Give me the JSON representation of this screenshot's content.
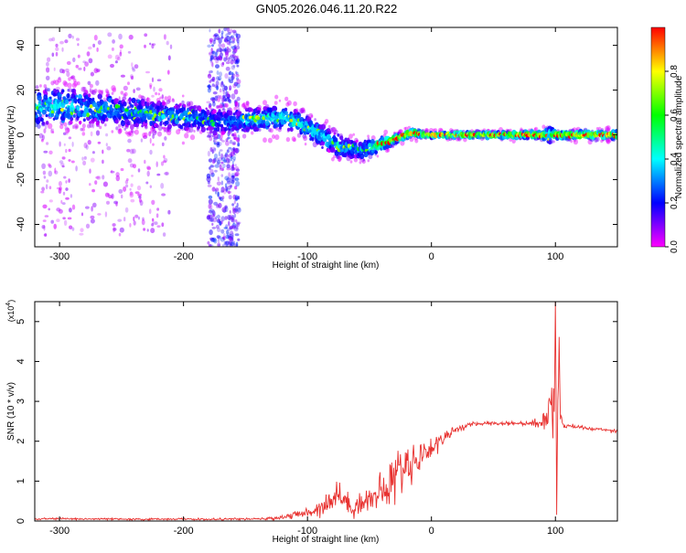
{
  "figure_title": "GN05.2026.046.11.20.R22",
  "chart_data": [
    {
      "type": "heatmap",
      "title": "",
      "xlabel": "Height of straight line (km)",
      "ylabel": "Frequency (Hz)",
      "xlim": [
        -320,
        150
      ],
      "ylim": [
        -50,
        48
      ],
      "xticks": [
        -300,
        -200,
        -100,
        0,
        100
      ],
      "yticks": [
        -40,
        -20,
        0,
        20,
        40
      ],
      "grid": false,
      "colorbar": {
        "label": "Normalized spectral amplitude",
        "range": [
          0,
          1
        ],
        "ticks": [
          0.0,
          0.2,
          0.4,
          0.6,
          0.8
        ],
        "colormap": [
          "#ff00ff",
          "#0000ff",
          "#00ffff",
          "#00ff00",
          "#ffff00",
          "#ff0000"
        ],
        "colormap_stops": [
          0,
          0.2,
          0.4,
          0.6,
          0.8,
          1.0
        ]
      },
      "ridge": {
        "x": [
          -320,
          -300,
          -280,
          -260,
          -240,
          -220,
          -200,
          -185,
          -172,
          -160,
          -140,
          -120,
          -105,
          -90,
          -75,
          -65,
          -55,
          -45,
          -35,
          -25,
          -15,
          -5,
          20,
          50,
          90,
          95,
          100,
          150
        ],
        "y": [
          12,
          13,
          12,
          11,
          10,
          9,
          8,
          7,
          6,
          6,
          7,
          8,
          5,
          0,
          -5,
          -6,
          -7,
          -5,
          -3,
          -1,
          1,
          0,
          0,
          0,
          0,
          0,
          0,
          0
        ],
        "width": [
          9,
          9,
          9,
          8,
          8,
          7,
          7,
          6,
          7,
          6,
          6,
          6,
          6,
          6,
          6,
          5,
          5,
          4,
          3,
          2,
          2,
          1.5,
          1.5,
          1.5,
          2,
          5,
          2,
          2
        ],
        "amplitude": [
          0.38,
          0.4,
          0.36,
          0.32,
          0.3,
          0.32,
          0.35,
          0.3,
          0.25,
          0.3,
          0.35,
          0.42,
          0.4,
          0.4,
          0.35,
          0.35,
          0.3,
          0.55,
          0.7,
          0.8,
          0.85,
          0.8,
          0.82,
          0.8,
          0.8,
          0.4,
          0.8,
          0.78
        ]
      },
      "noise_bands": [
        {
          "x_range": [
            -180,
            -155
          ],
          "y_range": [
            -50,
            48
          ],
          "amplitude": 0.12
        },
        {
          "x_range": [
            -315,
            -210
          ],
          "y_range": [
            -45,
            45
          ],
          "amplitude": 0.05
        }
      ]
    },
    {
      "type": "line",
      "title": "",
      "xlabel": "Height of straight line (km)",
      "ylabel": "SNR (10 * v/v)",
      "y_multiplier": "(x10",
      "y_multiplier_exp": "4",
      "xlim": [
        -320,
        150
      ],
      "ylim": [
        0,
        5.5
      ],
      "xticks": [
        -300,
        -200,
        -100,
        0,
        100
      ],
      "yticks": [
        0,
        1,
        2,
        3,
        4,
        5
      ],
      "grid": false,
      "color": "#e8312f",
      "series": [
        {
          "x": [
            -320,
            -300,
            -280,
            -260,
            -240,
            -220,
            -200,
            -180,
            -160,
            -140,
            -130,
            -120,
            -110,
            -100,
            -90,
            -80,
            -75,
            -70,
            -65,
            -60,
            -55,
            -50,
            -45,
            -40,
            -35,
            -30,
            -25,
            -20,
            -15,
            -10,
            -5,
            0,
            5,
            10,
            15,
            20,
            25,
            30,
            40,
            50,
            60,
            70,
            80,
            88,
            92,
            95,
            97,
            98,
            99,
            100,
            101,
            102,
            103,
            104,
            105,
            107,
            110,
            120,
            130,
            140,
            150
          ],
          "y": [
            0.05,
            0.06,
            0.05,
            0.05,
            0.04,
            0.05,
            0.05,
            0.04,
            0.05,
            0.05,
            0.06,
            0.1,
            0.15,
            0.2,
            0.35,
            0.55,
            0.7,
            0.5,
            0.35,
            0.4,
            0.5,
            0.55,
            0.6,
            0.7,
            0.85,
            1.1,
            1.3,
            1.4,
            1.5,
            1.6,
            1.7,
            1.85,
            1.95,
            2.1,
            2.2,
            2.3,
            2.35,
            2.4,
            2.45,
            2.45,
            2.45,
            2.45,
            2.45,
            2.45,
            2.6,
            2.9,
            3.4,
            2.3,
            3.0,
            5.4,
            0.4,
            3.2,
            4.3,
            2.7,
            2.5,
            2.35,
            2.4,
            2.35,
            2.3,
            2.3,
            2.25
          ],
          "noise": [
            0.02,
            0.02,
            0.02,
            0.02,
            0.02,
            0.02,
            0.02,
            0.02,
            0.02,
            0.02,
            0.03,
            0.05,
            0.08,
            0.12,
            0.2,
            0.25,
            0.3,
            0.25,
            0.2,
            0.22,
            0.25,
            0.3,
            0.35,
            0.4,
            0.5,
            0.55,
            0.5,
            0.45,
            0.4,
            0.35,
            0.3,
            0.25,
            0.2,
            0.15,
            0.1,
            0.08,
            0.06,
            0.05,
            0.04,
            0.04,
            0.04,
            0.04,
            0.05,
            0.15,
            0.3,
            0.4,
            0.5,
            0.5,
            0.5,
            0.5,
            0.5,
            0.4,
            0.3,
            0.2,
            0.1,
            0.05,
            0.04,
            0.04,
            0.04,
            0.04,
            0.04
          ]
        }
      ]
    }
  ]
}
